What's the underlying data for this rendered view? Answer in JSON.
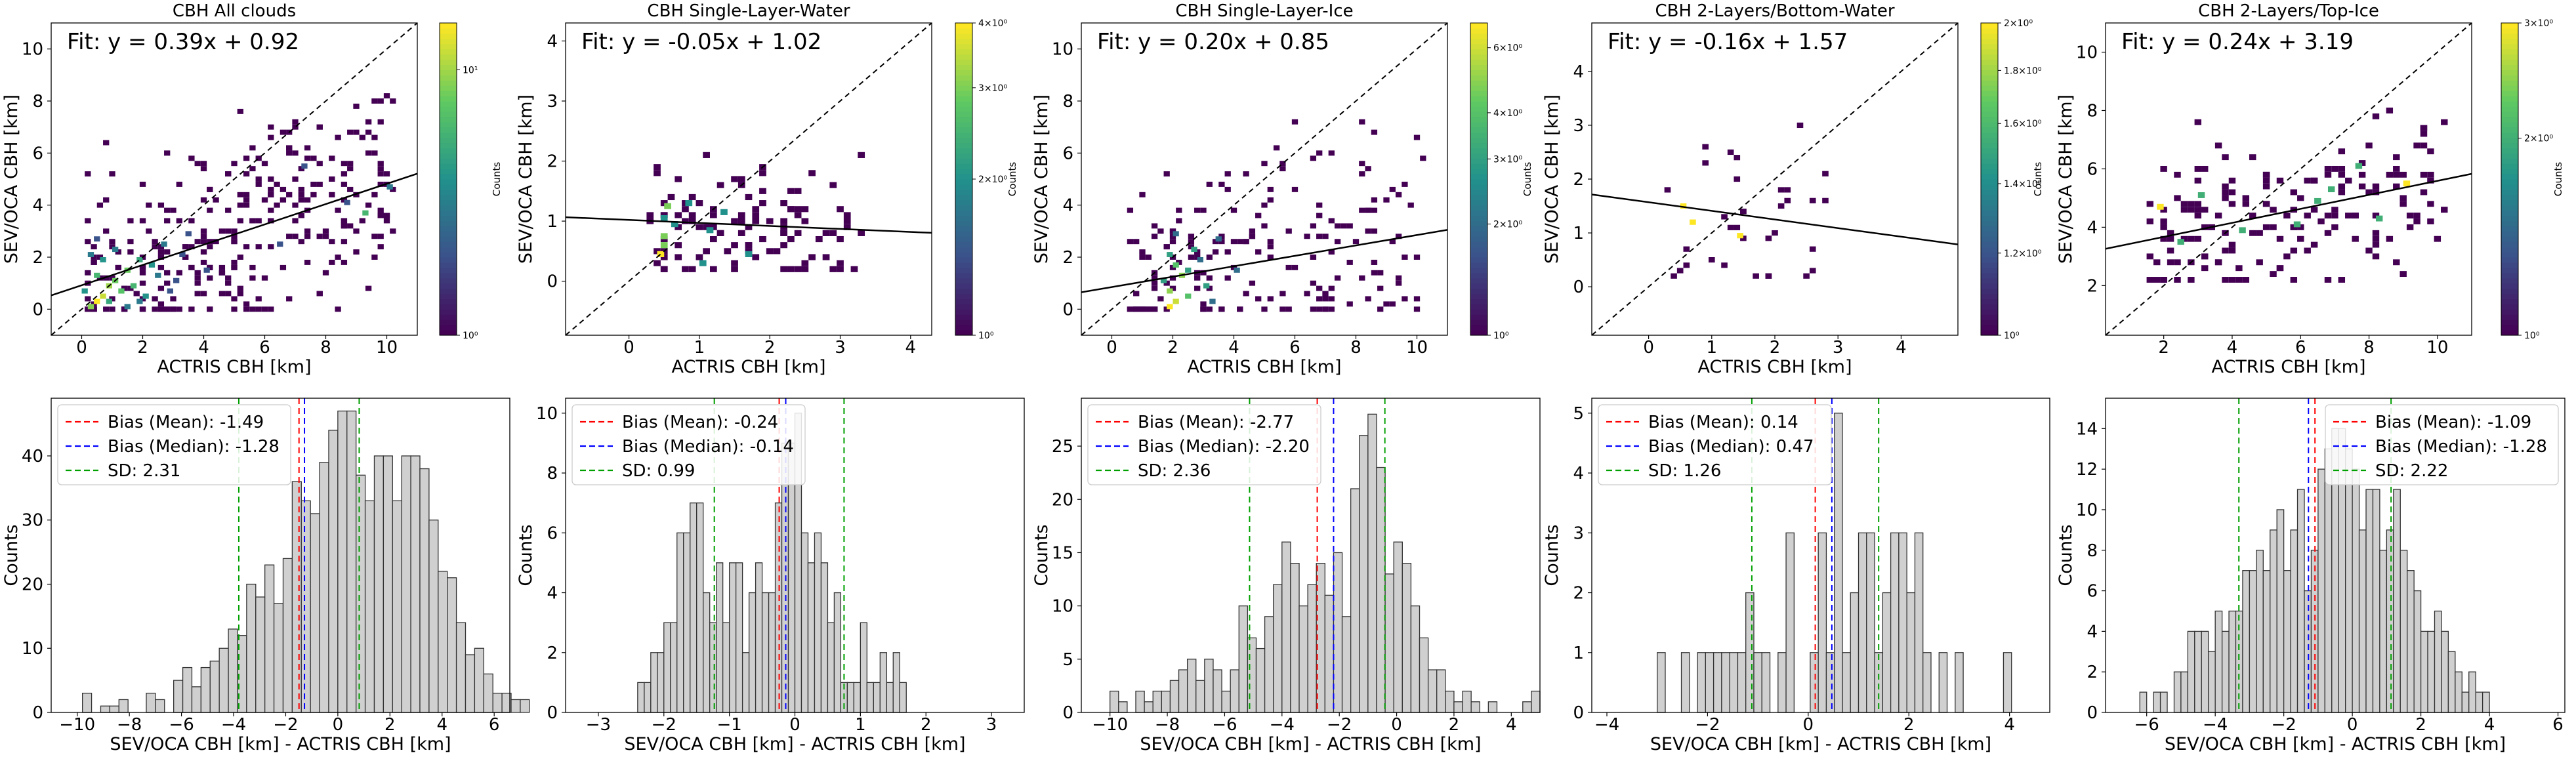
{
  "figure_title": "",
  "colors": {
    "mean_line": "#ff0000",
    "median_line": "#0000ff",
    "sd_line": "#00a000",
    "bar_fill": "#d0d0d0",
    "bar_edge": "#333333",
    "fit_line": "#000000",
    "viridis": [
      "#440154",
      "#3b528b",
      "#21918c",
      "#5ec962",
      "#fde725"
    ]
  },
  "chart_data": [
    {
      "type": "heatmap",
      "title": "CBH All clouds",
      "xlabel": "ACTRIS CBH [km]",
      "ylabel": "SEV/OCA CBH [km]",
      "xlim": [
        -1,
        11
      ],
      "ylim": [
        -1,
        11
      ],
      "xticks": [
        "0",
        "2",
        "4",
        "6",
        "8",
        "10"
      ],
      "xtick_values": [
        0,
        2,
        4,
        6,
        8,
        10
      ],
      "yticks": [
        "0",
        "2",
        "4",
        "6",
        "8",
        "10"
      ],
      "ytick_values": [
        0,
        2,
        4,
        6,
        8,
        10
      ],
      "fit_text": "Fit: y = 0.39x + 0.92",
      "fit": {
        "slope": 0.39,
        "intercept": 0.92
      },
      "colorbar": {
        "label": "Counts",
        "log": true,
        "min": 1,
        "max": 15,
        "ticks": [
          "10⁰",
          "10¹"
        ],
        "tick_values": [
          1,
          10
        ]
      },
      "cells": [
        [
          0.3,
          0.1,
          9
        ],
        [
          0.5,
          0.3,
          15
        ],
        [
          0.7,
          0.5,
          12
        ],
        [
          0.9,
          0.9,
          10
        ],
        [
          1.1,
          1.1,
          8
        ],
        [
          1.3,
          0.7,
          7
        ],
        [
          0.5,
          1.3,
          6
        ],
        [
          1.5,
          1.5,
          8
        ],
        [
          0.9,
          0.3,
          5
        ],
        [
          1.7,
          0.9,
          6
        ],
        [
          1.9,
          1.9,
          5
        ],
        [
          2.1,
          0.5,
          4
        ],
        [
          2.3,
          1.7,
          4
        ],
        [
          0.3,
          2.1,
          3
        ],
        [
          0.7,
          1.9,
          4
        ],
        [
          1.1,
          2.3,
          3
        ],
        [
          1.5,
          0.1,
          3
        ],
        [
          2.5,
          1.3,
          3
        ],
        [
          2.7,
          2.5,
          3
        ],
        [
          0.1,
          0.7,
          4
        ],
        [
          1.9,
          0.3,
          3
        ],
        [
          3.1,
          1.1,
          2
        ],
        [
          3.5,
          2.9,
          2
        ],
        [
          2.9,
          0.7,
          2
        ],
        [
          3.3,
          2.1,
          2
        ],
        [
          4.1,
          1.5,
          2
        ],
        [
          0.5,
          2.7,
          2
        ],
        [
          9.3,
          3.7,
          6
        ],
        [
          10.1,
          4.7,
          3
        ],
        [
          6.5,
          2.5,
          2
        ],
        [
          8.7,
          4.1,
          2
        ],
        [
          7.3,
          5.5,
          2
        ]
      ],
      "scatter_cells": {
        "x_range": [
          0,
          10.2
        ],
        "y_range": [
          0,
          8.2
        ],
        "count": 300,
        "value": 1,
        "seed": 11
      }
    },
    {
      "type": "heatmap",
      "title": "CBH Single-Layer-Water",
      "xlabel": "ACTRIS CBH [km]",
      "ylabel": "SEV/OCA CBH [km]",
      "xlim": [
        -0.9,
        4.3
      ],
      "ylim": [
        -0.9,
        4.3
      ],
      "xticks": [
        "0",
        "1",
        "2",
        "3",
        "4"
      ],
      "xtick_values": [
        0,
        1,
        2,
        3,
        4
      ],
      "yticks": [
        "0",
        "1",
        "2",
        "3",
        "4"
      ],
      "ytick_values": [
        0,
        1,
        2,
        3,
        4
      ],
      "fit_text": "Fit: y = -0.05x + 1.02",
      "fit": {
        "slope": -0.05,
        "intercept": 1.02
      },
      "colorbar": {
        "label": "Counts",
        "log": true,
        "min": 1,
        "max": 4,
        "ticks": [
          "10⁰",
          "2×10⁰",
          "3×10⁰",
          "4×10⁰"
        ],
        "tick_values": [
          1,
          2,
          3,
          4
        ]
      },
      "cells": [
        [
          0.45,
          0.45,
          4
        ],
        [
          0.5,
          0.75,
          3
        ],
        [
          0.55,
          1.25,
          3
        ],
        [
          0.5,
          1.05,
          2
        ],
        [
          0.65,
          0.95,
          2
        ],
        [
          1.15,
          0.85,
          2
        ],
        [
          1.35,
          1.15,
          2
        ],
        [
          0.85,
          1.3,
          2
        ],
        [
          1.7,
          0.45,
          2
        ],
        [
          1.05,
          0.3,
          2
        ],
        [
          0.5,
          0.6,
          3
        ]
      ],
      "scatter_cells": {
        "x_range": [
          0.3,
          3.3
        ],
        "y_range": [
          0.2,
          2.7
        ],
        "count": 110,
        "value": 1,
        "seed": 23
      }
    },
    {
      "type": "heatmap",
      "title": "CBH Single-Layer-Ice",
      "xlabel": "ACTRIS CBH [km]",
      "ylabel": "SEV/OCA CBH [km]",
      "xlim": [
        -1,
        11
      ],
      "ylim": [
        -1,
        11
      ],
      "xticks": [
        "0",
        "2",
        "4",
        "6",
        "8",
        "10"
      ],
      "xtick_values": [
        0,
        2,
        4,
        6,
        8,
        10
      ],
      "yticks": [
        "0",
        "2",
        "4",
        "6",
        "8",
        "10"
      ],
      "ytick_values": [
        0,
        2,
        4,
        6,
        8,
        10
      ],
      "fit_text": "Fit: y = 0.20x + 0.85",
      "fit": {
        "slope": 0.2,
        "intercept": 0.85
      },
      "colorbar": {
        "label": "Counts",
        "log": true,
        "min": 1,
        "max": 7,
        "ticks": [
          "10⁰",
          "2×10⁰",
          "3×10⁰",
          "4×10⁰",
          "6×10⁰"
        ],
        "tick_values": [
          1,
          2,
          3,
          4,
          6
        ]
      },
      "cells": [
        [
          1.9,
          0.1,
          7
        ],
        [
          2.1,
          0.3,
          6
        ],
        [
          1.9,
          0.7,
          5
        ],
        [
          2.3,
          1.3,
          5
        ],
        [
          2.1,
          1.7,
          4
        ],
        [
          2.5,
          0.5,
          4
        ],
        [
          1.7,
          1.1,
          3
        ],
        [
          2.7,
          2.3,
          3
        ],
        [
          3.1,
          0.9,
          3
        ],
        [
          2.9,
          1.9,
          2
        ],
        [
          3.5,
          2.7,
          2
        ],
        [
          2.1,
          2.9,
          2
        ],
        [
          4.1,
          1.5,
          2
        ],
        [
          3.3,
          0.3,
          2
        ],
        [
          1.9,
          2.1,
          3
        ],
        [
          2.5,
          1.5,
          3
        ]
      ],
      "scatter_cells": {
        "x_range": [
          0.5,
          10.2
        ],
        "y_range": [
          0,
          8.2
        ],
        "count": 190,
        "value": 1,
        "seed": 37
      }
    },
    {
      "type": "heatmap",
      "title": "CBH 2-Layers/Bottom-Water",
      "xlabel": "ACTRIS CBH [km]",
      "ylabel": "SEV/OCA CBH [km]",
      "xlim": [
        -0.9,
        4.9
      ],
      "ylim": [
        -0.9,
        4.9
      ],
      "xticks": [
        "0",
        "1",
        "2",
        "3",
        "4"
      ],
      "xtick_values": [
        0,
        1,
        2,
        3,
        4
      ],
      "yticks": [
        "0",
        "1",
        "2",
        "3",
        "4"
      ],
      "ytick_values": [
        0,
        1,
        2,
        3,
        4
      ],
      "fit_text": "Fit: y = -0.16x + 1.57",
      "fit": {
        "slope": -0.16,
        "intercept": 1.57
      },
      "colorbar": {
        "label": "Counts",
        "log": true,
        "min": 1,
        "max": 2,
        "ticks": [
          "10⁰",
          "1.2×10⁰",
          "1.4×10⁰",
          "1.6×10⁰",
          "1.8×10⁰",
          "2×10⁰"
        ],
        "tick_values": [
          1,
          1.2,
          1.4,
          1.6,
          1.8,
          2
        ]
      },
      "cells": [
        [
          0.7,
          1.2,
          2
        ],
        [
          0.55,
          1.5,
          2
        ],
        [
          1.45,
          0.95,
          2
        ]
      ],
      "scatter_cells": {
        "x_range": [
          0.2,
          2.8
        ],
        "y_range": [
          0.2,
          3.9
        ],
        "count": 34,
        "value": 1,
        "seed": 51
      }
    },
    {
      "type": "heatmap",
      "title": "CBH 2-Layers/Top-Ice",
      "xlabel": "ACTRIS CBH [km]",
      "ylabel": "SEV/OCA CBH [km]",
      "xlim": [
        0.3,
        11
      ],
      "ylim": [
        0.3,
        11
      ],
      "xticks": [
        "2",
        "4",
        "6",
        "8",
        "10"
      ],
      "xtick_values": [
        2,
        4,
        6,
        8,
        10
      ],
      "yticks": [
        "2",
        "4",
        "6",
        "8",
        "10"
      ],
      "ytick_values": [
        2,
        4,
        6,
        8,
        10
      ],
      "fit_text": "Fit: y = 0.24x + 3.19",
      "fit": {
        "slope": 0.24,
        "intercept": 3.19
      },
      "colorbar": {
        "label": "Counts",
        "log": true,
        "min": 1,
        "max": 3,
        "ticks": [
          "10⁰",
          "2×10⁰",
          "3×10⁰"
        ],
        "tick_values": [
          1,
          2,
          3
        ]
      },
      "cells": [
        [
          9.1,
          5.5,
          3
        ],
        [
          1.9,
          4.7,
          3
        ],
        [
          8.3,
          4.3,
          2
        ],
        [
          5.9,
          4.1,
          2
        ],
        [
          6.9,
          5.3,
          2
        ],
        [
          4.3,
          3.9,
          2
        ],
        [
          3.1,
          5.1,
          2
        ],
        [
          7.7,
          6.1,
          2
        ],
        [
          6.5,
          4.9,
          2
        ],
        [
          2.5,
          3.5,
          2
        ]
      ],
      "scatter_cells": {
        "x_range": [
          1.5,
          10.2
        ],
        "y_range": [
          2.2,
          8.2
        ],
        "count": 170,
        "value": 1,
        "seed": 67
      }
    },
    {
      "type": "bar",
      "subtype": "histogram",
      "xlabel": "SEV/OCA CBH [km] - ACTRIS CBH [km]",
      "ylabel": "Counts",
      "xlim": [
        -11,
        6.6
      ],
      "ylim": [
        0,
        49
      ],
      "xticks": [
        "−10",
        "−8",
        "−6",
        "−4",
        "−2",
        "0",
        "2",
        "4",
        "6"
      ],
      "xtick_values": [
        -10,
        -8,
        -6,
        -4,
        -2,
        0,
        2,
        4,
        6
      ],
      "yticks": [
        "0",
        "10",
        "20",
        "30",
        "40"
      ],
      "ytick_values": [
        0,
        10,
        20,
        30,
        40
      ],
      "bin_start": -9.8,
      "bin_width": 0.35,
      "counts": [
        3,
        0,
        1,
        1,
        2,
        0,
        0,
        3,
        2,
        0,
        5,
        7,
        4,
        7,
        8,
        10,
        13,
        12,
        20,
        18,
        23,
        17,
        24,
        36,
        33,
        31,
        39,
        44,
        47,
        47,
        37,
        33,
        40,
        40,
        33,
        40,
        40,
        38,
        30,
        22,
        21,
        14,
        9,
        10,
        6,
        3,
        3,
        2,
        2
      ],
      "mean": -1.49,
      "median": -1.28,
      "sd": 2.31,
      "legend": [
        "Bias (Mean): -1.49",
        "Bias (Median): -1.28",
        "SD: 2.31"
      ],
      "legend_loc": "upper left"
    },
    {
      "type": "bar",
      "subtype": "histogram",
      "xlabel": "SEV/OCA CBH [km] - ACTRIS CBH [km]",
      "ylabel": "Counts",
      "xlim": [
        -3.5,
        3.5
      ],
      "ylim": [
        0,
        10.5
      ],
      "xticks": [
        "−3",
        "−2",
        "−1",
        "0",
        "1",
        "2",
        "3"
      ],
      "xtick_values": [
        -3,
        -2,
        -1,
        0,
        1,
        2,
        3
      ],
      "yticks": [
        "0",
        "2",
        "4",
        "6",
        "8",
        "10"
      ],
      "ytick_values": [
        0,
        2,
        4,
        6,
        8,
        10
      ],
      "bin_start": -2.4,
      "bin_width": 0.1,
      "counts": [
        1,
        1,
        2,
        2,
        3,
        3,
        6,
        6,
        7,
        7,
        4,
        3,
        5,
        3,
        5,
        5,
        2,
        4,
        5,
        4,
        4,
        7,
        9,
        9,
        10,
        6,
        5,
        6,
        5,
        3,
        4,
        1,
        1,
        1,
        3,
        1,
        1,
        2,
        1,
        2,
        1
      ],
      "mean": -0.24,
      "median": -0.14,
      "sd": 0.99,
      "legend": [
        "Bias (Mean): -0.24",
        "Bias (Median): -0.14",
        "SD: 0.99"
      ],
      "legend_loc": "upper left"
    },
    {
      "type": "bar",
      "subtype": "histogram",
      "xlabel": "SEV/OCA CBH [km] - ACTRIS CBH [km]",
      "ylabel": "Counts",
      "xlim": [
        -11,
        5
      ],
      "ylim": [
        0,
        29.5
      ],
      "xticks": [
        "−10",
        "−8",
        "−6",
        "−4",
        "−2",
        "0",
        "2",
        "4"
      ],
      "xtick_values": [
        -10,
        -8,
        -6,
        -4,
        -2,
        0,
        2,
        4
      ],
      "yticks": [
        "0",
        "5",
        "10",
        "15",
        "20",
        "25"
      ],
      "ytick_values": [
        0,
        5,
        10,
        15,
        20,
        25
      ],
      "bin_start": -10.0,
      "bin_width": 0.3,
      "counts": [
        2,
        1,
        0,
        2,
        1,
        2,
        2,
        3,
        4,
        5,
        3,
        5,
        4,
        2,
        4,
        10,
        7,
        6,
        9,
        12,
        16,
        14,
        10,
        12,
        14,
        11,
        15,
        9,
        21,
        26,
        28,
        23,
        13,
        16,
        14,
        10,
        7,
        4,
        4,
        2,
        1,
        2,
        1,
        0,
        1,
        0,
        0,
        0,
        1,
        2
      ],
      "mean": -2.77,
      "median": -2.2,
      "sd": 2.36,
      "legend": [
        "Bias (Mean): -2.77",
        "Bias (Median): -2.20",
        "SD: 2.36"
      ],
      "legend_loc": "upper left"
    },
    {
      "type": "bar",
      "subtype": "histogram",
      "xlabel": "SEV/OCA CBH [km] - ACTRIS CBH [km]",
      "ylabel": "Counts",
      "xlim": [
        -4.3,
        4.8
      ],
      "ylim": [
        0,
        5.25
      ],
      "xticks": [
        "−4",
        "−2",
        "0",
        "2",
        "4"
      ],
      "xtick_values": [
        -4,
        -2,
        0,
        2,
        4
      ],
      "yticks": [
        "0",
        "1",
        "2",
        "3",
        "4",
        "5"
      ],
      "ytick_values": [
        0,
        1,
        2,
        3,
        4,
        5
      ],
      "bin_start": -3.0,
      "bin_width": 0.16,
      "counts": [
        1,
        0,
        0,
        1,
        0,
        1,
        1,
        1,
        1,
        1,
        1,
        2,
        1,
        1,
        0,
        1,
        3,
        0,
        0,
        1,
        3,
        1,
        5,
        1,
        2,
        3,
        3,
        1,
        2,
        3,
        3,
        2,
        3,
        1,
        0,
        1,
        0,
        1,
        0,
        0,
        0,
        0,
        0,
        1
      ],
      "mean": 0.14,
      "median": 0.47,
      "sd": 1.26,
      "legend": [
        "Bias (Mean): 0.14",
        "Bias (Median): 0.47",
        "SD: 1.26"
      ],
      "legend_loc": "upper left"
    },
    {
      "type": "bar",
      "subtype": "histogram",
      "xlabel": "SEV/OCA CBH [km] - ACTRIS CBH [km]",
      "ylabel": "Counts",
      "xlim": [
        -7.2,
        6.2
      ],
      "ylim": [
        0,
        15.5
      ],
      "xticks": [
        "−6",
        "−4",
        "−2",
        "0",
        "2",
        "4",
        "6"
      ],
      "xtick_values": [
        -6,
        -4,
        -2,
        0,
        2,
        4,
        6
      ],
      "yticks": [
        "0",
        "2",
        "4",
        "6",
        "8",
        "10",
        "12",
        "14"
      ],
      "ytick_values": [
        0,
        2,
        4,
        6,
        8,
        10,
        12,
        14
      ],
      "bin_start": -6.2,
      "bin_width": 0.2,
      "counts": [
        1,
        0,
        1,
        1,
        0,
        2,
        2,
        4,
        4,
        4,
        3,
        5,
        4,
        5,
        5,
        7,
        7,
        8,
        7,
        9,
        10,
        7,
        9,
        11,
        6,
        8,
        12,
        13,
        14,
        14,
        13,
        12,
        9,
        11,
        11,
        8,
        9,
        11,
        8,
        7,
        6,
        4,
        4,
        5,
        4,
        3,
        2,
        1,
        2,
        1,
        1
      ],
      "mean": -1.09,
      "median": -1.28,
      "sd": 2.22,
      "legend": [
        "Bias (Mean): -1.09",
        "Bias (Median): -1.28",
        "SD: 2.22"
      ],
      "legend_loc": "upper right"
    }
  ]
}
